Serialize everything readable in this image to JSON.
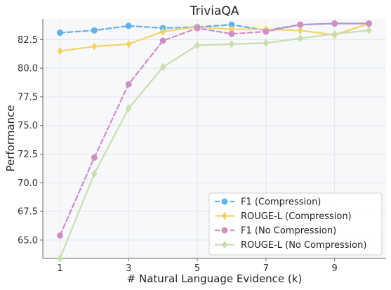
{
  "chart_data": {
    "type": "line",
    "title": "TriviaQA",
    "xlabel": "# Natural Language Evidence (k)",
    "ylabel": "Performance",
    "x": [
      1,
      2,
      3,
      4,
      5,
      6,
      7,
      8,
      9,
      10
    ],
    "xticks": [
      1,
      3,
      5,
      7,
      9
    ],
    "yticks": [
      65.0,
      67.5,
      70.0,
      72.5,
      75.0,
      77.5,
      80.0,
      82.5
    ],
    "xlim": [
      0.5,
      10.5
    ],
    "ylim": [
      63.4,
      84.3
    ],
    "grid": true,
    "legend_position": "lower-right",
    "series": [
      {
        "name": "F1 (Compression)",
        "color": "#63b0ea",
        "linestyle": "dashed",
        "marker": "circle",
        "values": [
          83.1,
          83.3,
          83.7,
          83.5,
          83.6,
          83.8,
          83.3,
          83.8,
          83.9,
          83.9
        ]
      },
      {
        "name": "ROUGE-L (Compression)",
        "color": "#f2d36b",
        "linestyle": "solid",
        "marker": "diamond",
        "values": [
          81.5,
          81.9,
          82.1,
          83.2,
          83.6,
          83.4,
          83.4,
          83.3,
          82.9,
          83.9
        ]
      },
      {
        "name": "F1 (No Compression)",
        "color": "#cf8fc3",
        "linestyle": "dashed",
        "marker": "circle",
        "values": [
          65.4,
          72.2,
          78.6,
          82.4,
          83.5,
          83.0,
          83.2,
          83.8,
          83.9,
          83.9
        ]
      },
      {
        "name": "ROUGE-L (No Compression)",
        "color": "#c8ddb0",
        "linestyle": "solid",
        "marker": "diamond",
        "values": [
          63.4,
          70.8,
          76.5,
          80.1,
          82.0,
          82.1,
          82.2,
          82.6,
          83.0,
          83.3
        ]
      }
    ]
  }
}
